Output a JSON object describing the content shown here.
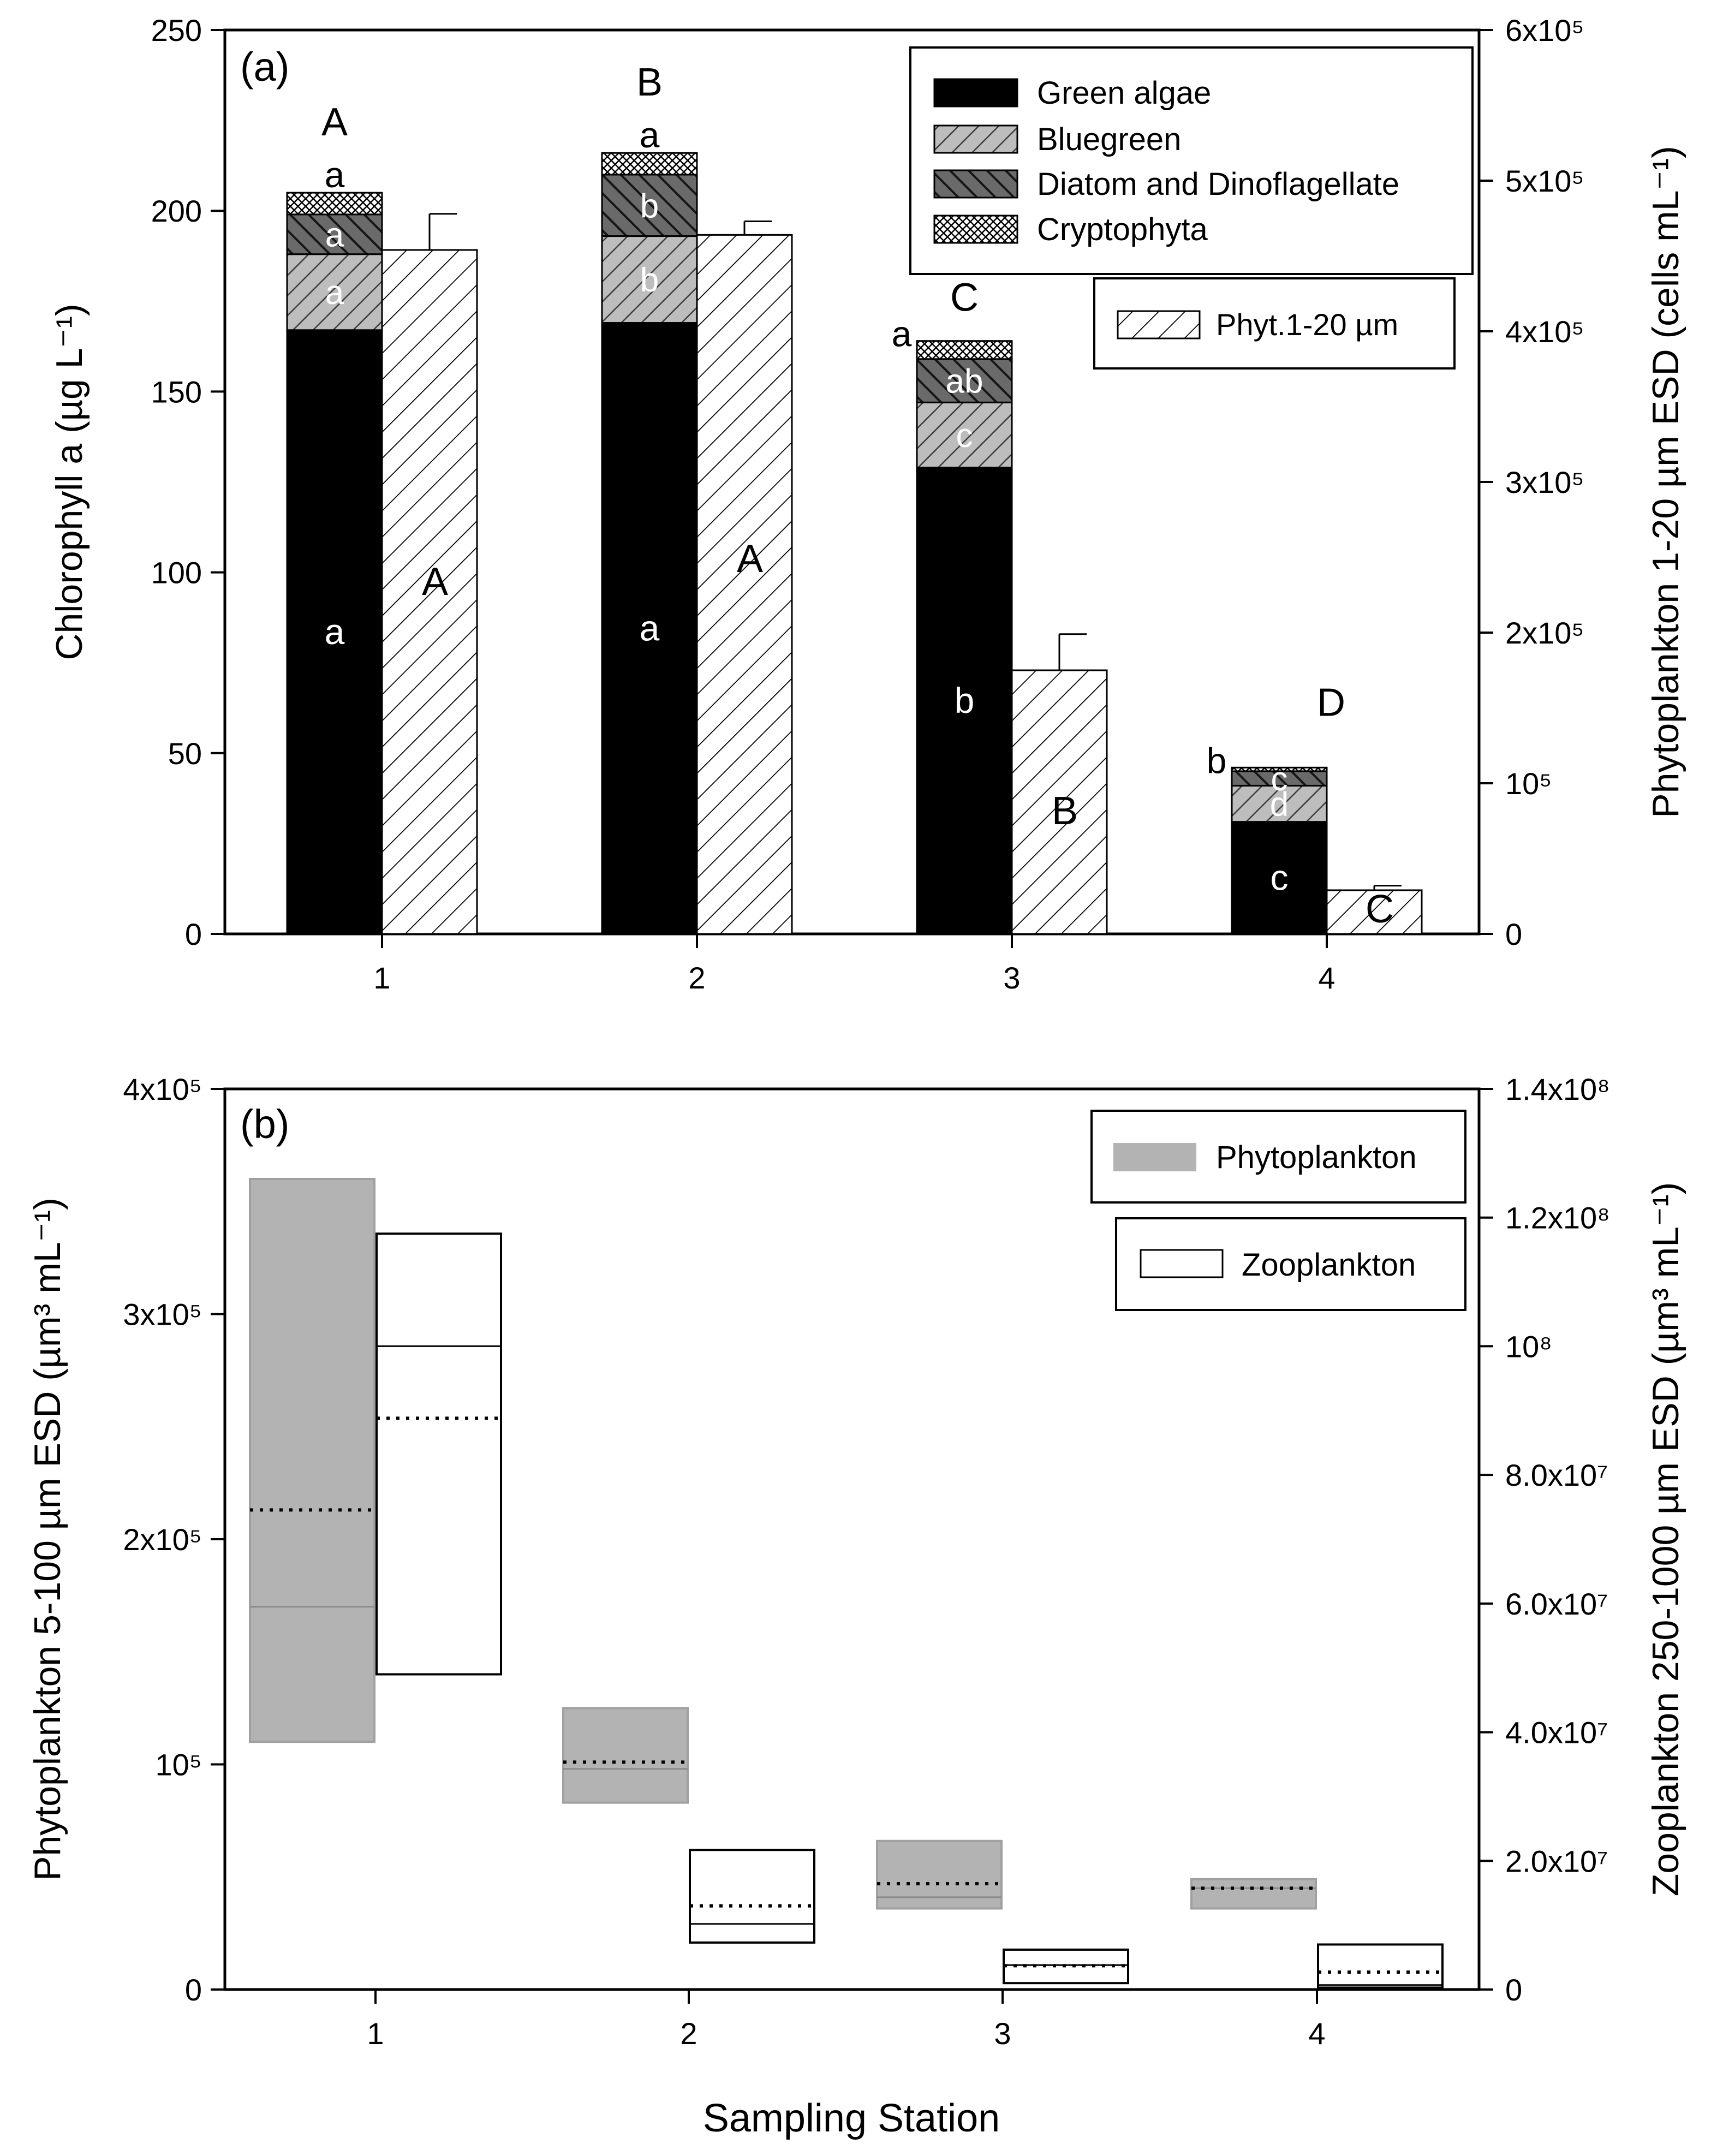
{
  "chart_data": [
    {
      "panel_label": "(a)",
      "type": "bar",
      "categories": [
        "1",
        "2",
        "3",
        "4"
      ],
      "xlabel": "",
      "ylabel": "Chlorophyll a (µg L⁻¹)",
      "ylabel_right": "Phytoplankton 1-20 µm ESD (cells mL⁻¹)",
      "ylim": [
        0,
        250
      ],
      "ylim_right": [
        0,
        600000
      ],
      "yticks": [
        "0",
        "50",
        "100",
        "150",
        "200",
        "250"
      ],
      "yticks_right": [
        "0",
        "10⁵",
        "2x10⁵",
        "3x10⁵",
        "4x10⁵",
        "5x10⁵",
        "6x10⁵"
      ],
      "stacked_series": [
        {
          "name": "Green algae",
          "values": [
            167,
            169,
            129,
            31
          ],
          "letters": [
            "a",
            "a",
            "b",
            "c"
          ]
        },
        {
          "name": "Bluegreen",
          "values": [
            21,
            24,
            18,
            10
          ],
          "letters": [
            "a",
            "b",
            "c",
            "d"
          ]
        },
        {
          "name": "Diatom and Dinoflagellate",
          "values": [
            11,
            17,
            12,
            4
          ],
          "letters": [
            "a",
            "b",
            "ab",
            "c"
          ]
        },
        {
          "name": "Cryptophyta",
          "values": [
            6,
            6,
            5,
            1
          ],
          "letters": [
            "a",
            "a",
            "a",
            "b"
          ]
        }
      ],
      "stack_group_letters": [
        "A",
        "B",
        "C",
        "D"
      ],
      "secondary_series": {
        "name": "Phyt.1-20 µm",
        "values": [
          454000,
          464000,
          175000,
          29000
        ],
        "errors": [
          24000,
          9000,
          24000,
          3000
        ],
        "letters": [
          "A",
          "A",
          "B",
          "C"
        ]
      },
      "legend": [
        "Green algae",
        "Bluegreen",
        "Diatom and Dinoflagellate",
        "Cryptophyta",
        "Phyt.1-20 µm"
      ]
    },
    {
      "panel_label": "(b)",
      "type": "box",
      "categories": [
        "1",
        "2",
        "3",
        "4"
      ],
      "xlabel": "Sampling Station",
      "ylabel": "Phytoplankton 5-100 µm ESD (µm³ mL⁻¹)",
      "ylabel_right": "Zooplankton 250-1000 µm ESD (µm³ mL⁻¹)",
      "ylim": [
        0,
        400000
      ],
      "ylim_right": [
        0,
        140000000
      ],
      "yticks": [
        "0",
        "10⁵",
        "2x10⁵",
        "3x10⁵",
        "4x10⁵"
      ],
      "yticks_right": [
        "0",
        "2.0x10⁷",
        "4.0x10⁷",
        "6.0x10⁷",
        "8.0x10⁷",
        "10⁸",
        "1.2x10⁸",
        "1.4x10⁸"
      ],
      "series": [
        {
          "name": "Phytoplankton",
          "axis": "left",
          "boxes": [
            {
              "q1": 110000,
              "median": 170000,
              "mean": 213000,
              "q3": 360000
            },
            {
              "q1": 83000,
              "median": 98000,
              "mean": 101000,
              "q3": 125000
            },
            {
              "q1": 36000,
              "median": 41000,
              "mean": 47000,
              "q3": 66000
            },
            {
              "q1": 36000,
              "median": 45000,
              "mean": 45000,
              "q3": 49000
            }
          ]
        },
        {
          "name": "Zooplankton",
          "axis": "right",
          "boxes": [
            {
              "q1": 49000000,
              "median": 100000000,
              "mean": 88800000,
              "q3": 117500000
            },
            {
              "q1": 7300000,
              "median": 10200000,
              "mean": 13000000,
              "q3": 21700000
            },
            {
              "q1": 1000000,
              "median": 3800000,
              "mean": 3700000,
              "q3": 6200000
            },
            {
              "q1": 300000,
              "median": 700000,
              "mean": 2700000,
              "q3": 7000000
            }
          ]
        }
      ],
      "legend": [
        "Phytoplankton",
        "Zooplankton"
      ]
    }
  ]
}
